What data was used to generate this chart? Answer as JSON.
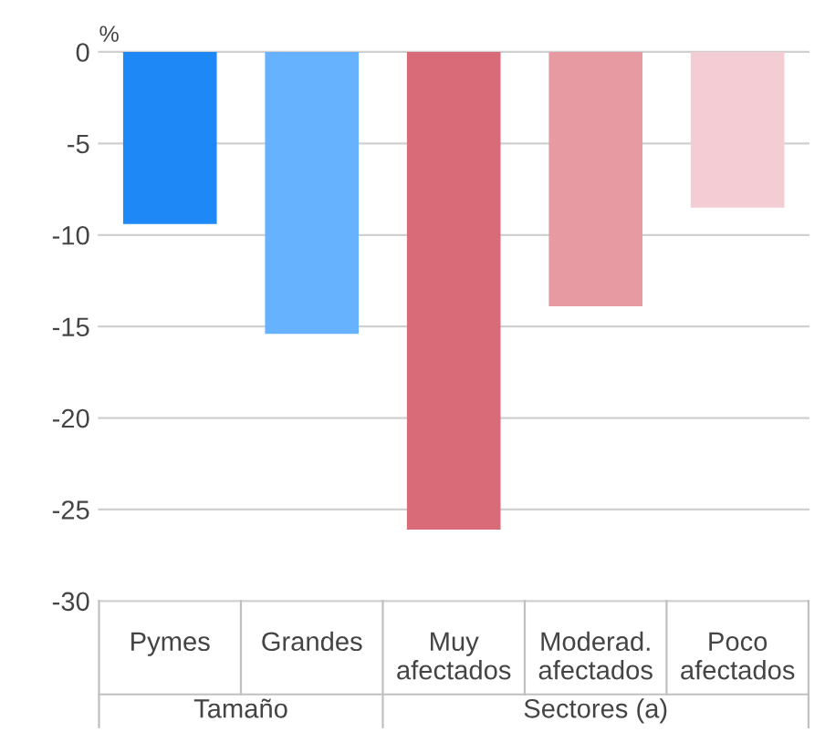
{
  "chart_data": {
    "type": "bar",
    "ylabel": "%",
    "categories": [
      "Pymes",
      "Grandes",
      "Muy\nafectados",
      "Moderad.\nafectados",
      "Poco\nafectados"
    ],
    "values": [
      -9.4,
      -15.4,
      -26.1,
      -13.9,
      -8.5
    ],
    "colors": [
      "#1e88f6",
      "#66b2ff",
      "#d96a78",
      "#e89aa3",
      "#f3cdd3"
    ],
    "ylim": [
      -30,
      0
    ],
    "yticks": [
      0,
      -5,
      -10,
      -15,
      -20,
      -25,
      -30
    ],
    "grid": "y",
    "annotations": [
      "Tamaño",
      "Sectores (a)"
    ]
  }
}
